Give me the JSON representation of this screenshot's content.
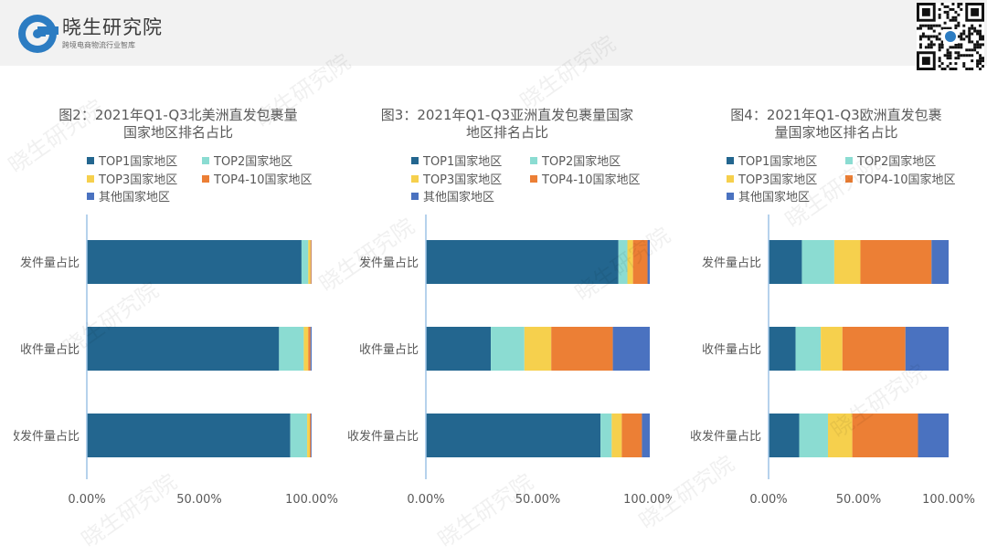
{
  "brand": {
    "name": "晓生研究院",
    "tagline": "跨境电商物流行业智库"
  },
  "watermark": "晓生研究院",
  "legend_items": [
    "TOP1国家地区",
    "TOP2国家地区",
    "TOP3国家地区",
    "TOP4-10国家地区",
    "其他国家地区"
  ],
  "chart_data": [
    {
      "type": "bar",
      "orientation": "horizontal",
      "stacked": true,
      "title_lines": [
        "图2：2021年Q1-Q3北美洲直发包裹量",
        "国家地区排名占比"
      ],
      "categories": [
        "发件量占比",
        "收件量占比",
        "收发件量占比"
      ],
      "xlim": [
        0,
        1
      ],
      "xticks": [
        "0.00%",
        "50.00%",
        "100.00%"
      ],
      "legend_position": "top",
      "series": [
        {
          "name": "TOP1国家地区",
          "color": "#23668f",
          "values": [
            0.955,
            0.855,
            0.905
          ]
        },
        {
          "name": "TOP2国家地区",
          "color": "#8bdcd2",
          "values": [
            0.03,
            0.11,
            0.075
          ]
        },
        {
          "name": "TOP3国家地区",
          "color": "#f6d04d",
          "values": [
            0.01,
            0.02,
            0.012
          ]
        },
        {
          "name": "TOP4-10国家地区",
          "color": "#ec7f35",
          "values": [
            0.004,
            0.01,
            0.005
          ]
        },
        {
          "name": "其他国家地区",
          "color": "#4a72c0",
          "values": [
            0.001,
            0.005,
            0.003
          ]
        }
      ]
    },
    {
      "type": "bar",
      "orientation": "horizontal",
      "stacked": true,
      "title_lines": [
        "图3：2021年Q1-Q3亚洲直发包裹量国家",
        "地区排名占比"
      ],
      "categories": [
        "发件量占比",
        "收件量占比",
        "收发件量占比"
      ],
      "xlim": [
        0,
        1
      ],
      "xticks": [
        "0.00%",
        "50.00%",
        "100.00%"
      ],
      "legend_position": "top",
      "series": [
        {
          "name": "TOP1国家地区",
          "color": "#23668f",
          "values": [
            0.86,
            0.29,
            0.78
          ]
        },
        {
          "name": "TOP2国家地区",
          "color": "#8bdcd2",
          "values": [
            0.04,
            0.15,
            0.05
          ]
        },
        {
          "name": "TOP3国家地区",
          "color": "#f6d04d",
          "values": [
            0.025,
            0.12,
            0.045
          ]
        },
        {
          "name": "TOP4-10国家地区",
          "color": "#ec7f35",
          "values": [
            0.065,
            0.275,
            0.09
          ]
        },
        {
          "name": "其他国家地区",
          "color": "#4a72c0",
          "values": [
            0.01,
            0.165,
            0.035
          ]
        }
      ]
    },
    {
      "type": "bar",
      "orientation": "horizontal",
      "stacked": true,
      "title_lines": [
        "图4：2021年Q1-Q3欧洲直发包裹",
        "量国家地区排名占比"
      ],
      "categories": [
        "发件量占比",
        "收件量占比",
        "收发件量占比"
      ],
      "xlim": [
        0,
        1
      ],
      "xticks": [
        "0.00%",
        "50.00%",
        "100.00%"
      ],
      "legend_position": "top",
      "series": [
        {
          "name": "TOP1国家地区",
          "color": "#23668f",
          "values": [
            0.185,
            0.15,
            0.17
          ]
        },
        {
          "name": "TOP2国家地区",
          "color": "#8bdcd2",
          "values": [
            0.18,
            0.14,
            0.16
          ]
        },
        {
          "name": "TOP3国家地区",
          "color": "#f6d04d",
          "values": [
            0.145,
            0.12,
            0.135
          ]
        },
        {
          "name": "TOP4-10国家地区",
          "color": "#ec7f35",
          "values": [
            0.395,
            0.35,
            0.365
          ]
        },
        {
          "name": "其他国家地区",
          "color": "#4a72c0",
          "values": [
            0.095,
            0.24,
            0.17
          ]
        }
      ]
    }
  ]
}
